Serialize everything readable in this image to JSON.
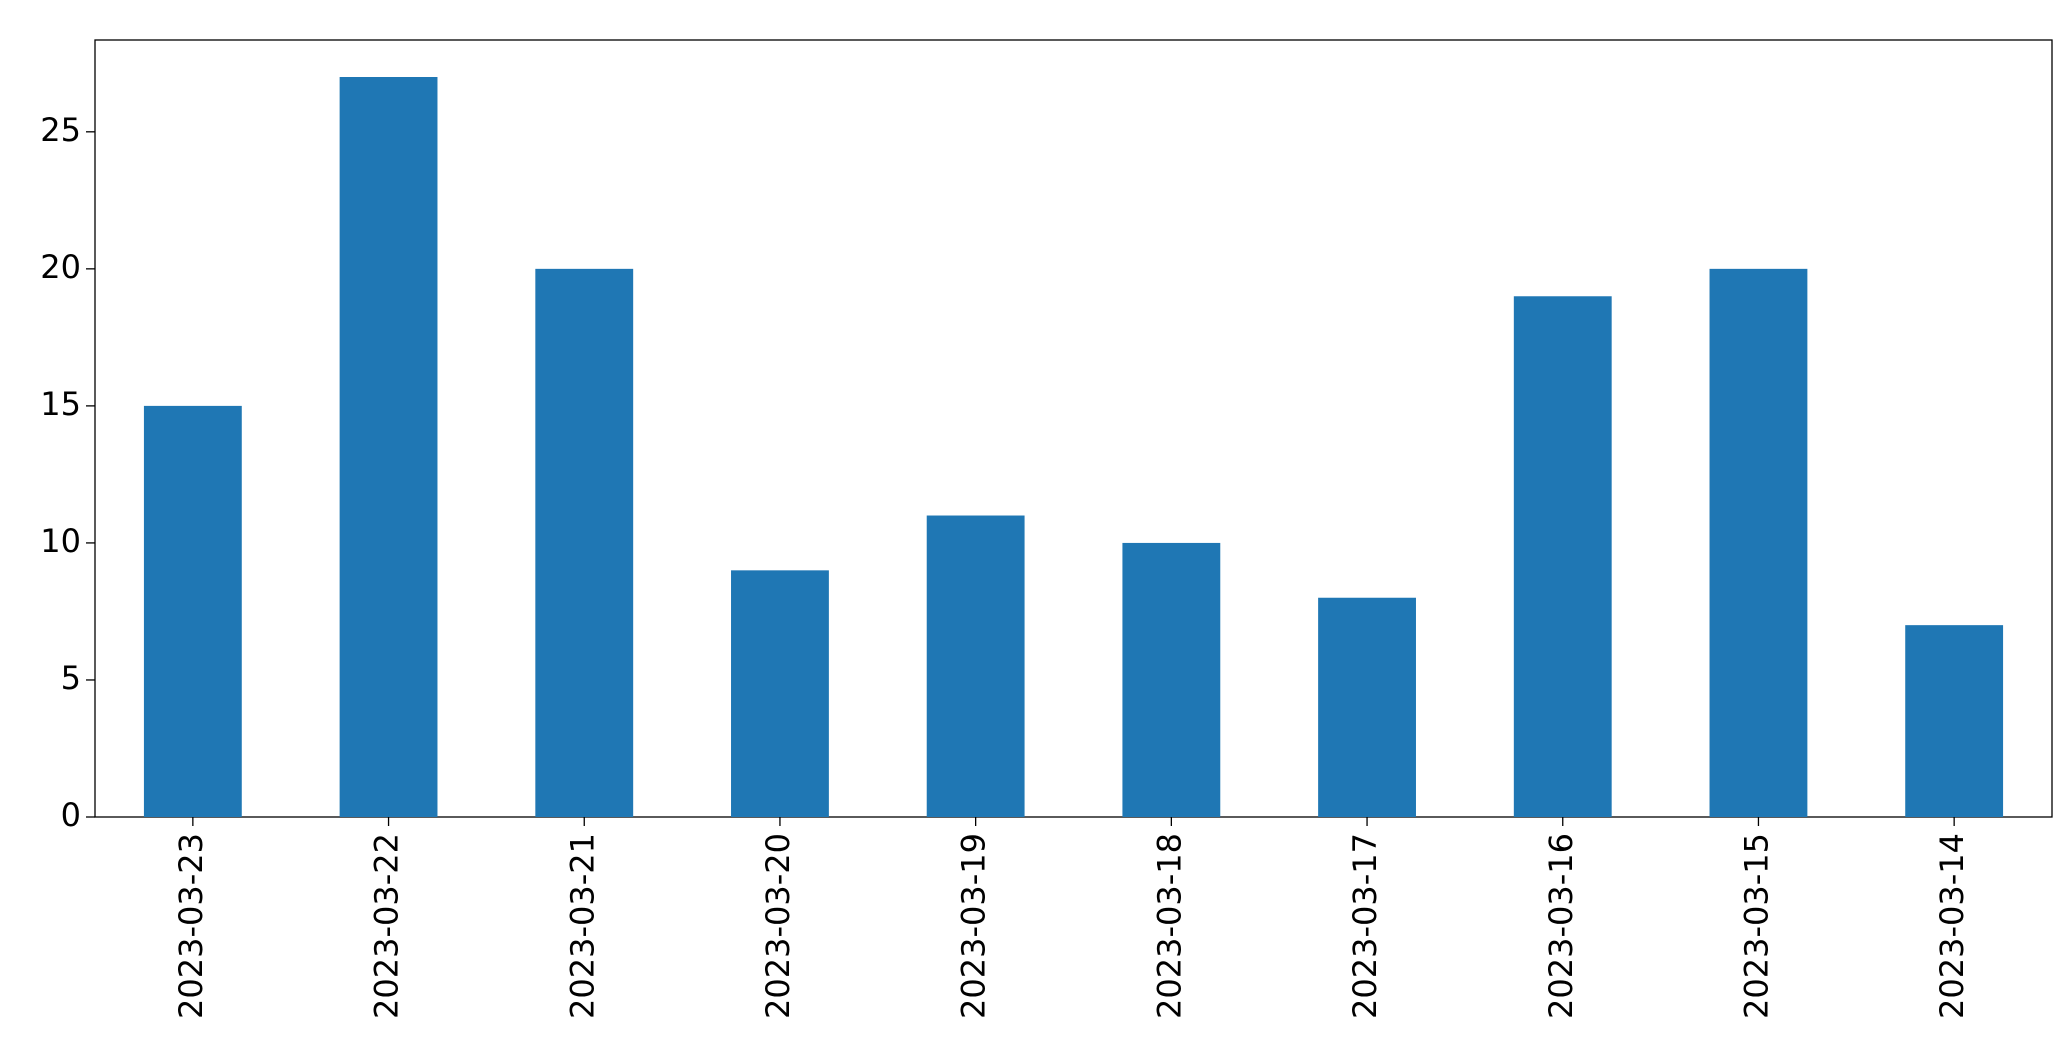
{
  "chart_data": {
    "type": "bar",
    "categories": [
      "2023-03-23",
      "2023-03-22",
      "2023-03-21",
      "2023-03-20",
      "2023-03-19",
      "2023-03-18",
      "2023-03-17",
      "2023-03-16",
      "2023-03-15",
      "2023-03-14"
    ],
    "values": [
      15,
      27,
      20,
      9,
      11,
      10,
      8,
      19,
      20,
      7
    ],
    "color": "#1f77b4",
    "ylim": [
      0,
      28.35
    ],
    "yticks": [
      0,
      5,
      10,
      15,
      20,
      25
    ],
    "grid": false
  }
}
